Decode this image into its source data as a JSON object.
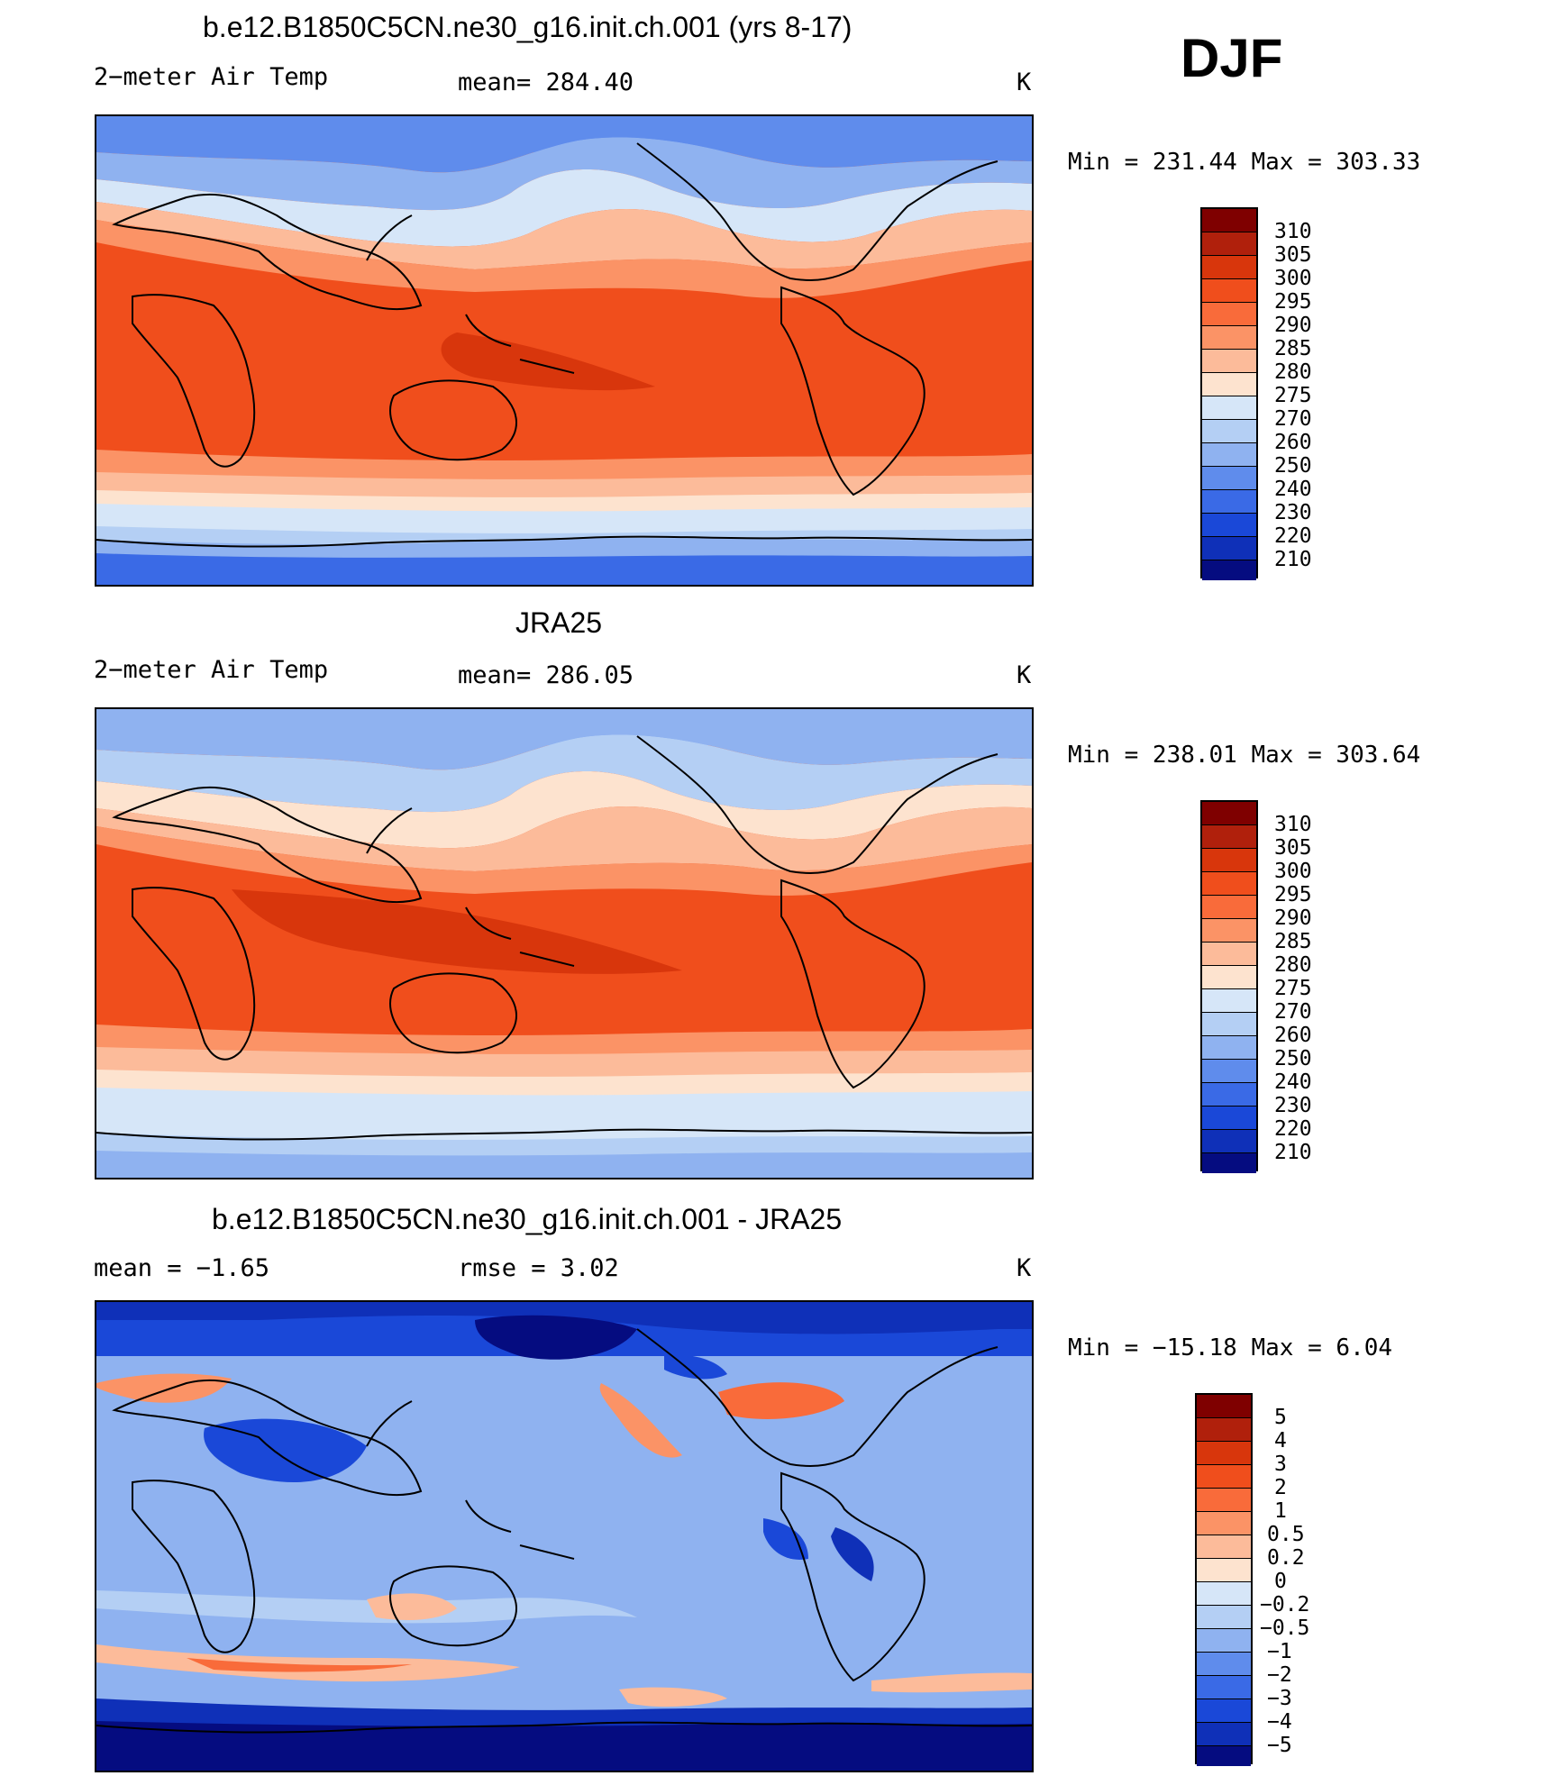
{
  "season": "DJF",
  "panels": [
    {
      "title": "b.e12.B1850C5CN.ne30_g16.init.ch.001 (yrs 8-17)",
      "left_label": "2−meter Air Temp",
      "center_label": "mean=  284.40",
      "units": "K",
      "minmax": "Min  =  231.44  Max  =  303.33",
      "levels": [
        "310",
        "305",
        "300",
        "295",
        "290",
        "285",
        "280",
        "275",
        "270",
        "260",
        "250",
        "240",
        "230",
        "220",
        "210"
      ]
    },
    {
      "title": "JRA25",
      "left_label": "2−meter Air Temp",
      "center_label": "mean=  286.05",
      "units": "K",
      "minmax": "Min  =  238.01  Max  =  303.64",
      "levels": [
        "310",
        "305",
        "300",
        "295",
        "290",
        "285",
        "280",
        "275",
        "270",
        "260",
        "250",
        "240",
        "230",
        "220",
        "210"
      ]
    },
    {
      "title": "b.e12.B1850C5CN.ne30_g16.init.ch.001 - JRA25",
      "left_label": "mean  =   −1.65",
      "center_label": "rmse  =    3.02",
      "units": "K",
      "minmax": "Min  =  −15.18  Max  =    6.04",
      "levels": [
        "5",
        "4",
        "3",
        "2",
        "1",
        "0.5",
        "0.2",
        "0",
        "−0.2",
        "−0.5",
        "−1",
        "−2",
        "−3",
        "−4",
        "−5"
      ]
    }
  ],
  "colors": {
    "scale": [
      "#7f0000",
      "#b0200c",
      "#d8360c",
      "#f04e1c",
      "#f96b3a",
      "#fb9366",
      "#fcbb9a",
      "#fde3cf",
      "#d6e6f8",
      "#b4cff4",
      "#8fb2f0",
      "#5f8cec",
      "#3a6ae6",
      "#1a48d8",
      "#0f30b8",
      "#08169a",
      "#050c80"
    ],
    "coast": "#000000"
  }
}
